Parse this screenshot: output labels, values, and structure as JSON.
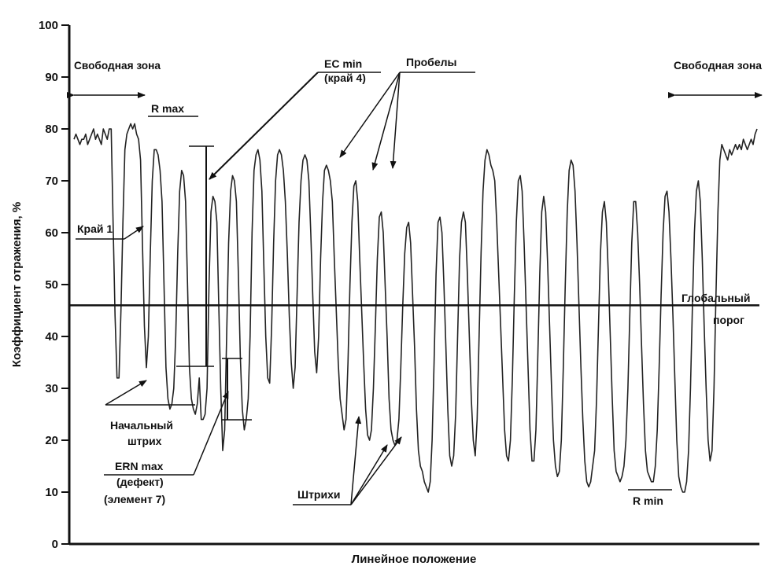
{
  "chart_data": {
    "type": "line",
    "title": "",
    "xlabel": "Линейное положение",
    "ylabel": "Коэффициент отражения, %",
    "ylim": [
      0,
      100
    ],
    "yticks": [
      0,
      10,
      20,
      30,
      40,
      50,
      60,
      70,
      80,
      90,
      100
    ],
    "grid": false,
    "legend": "none",
    "global_threshold": 46,
    "series": [
      {
        "values": [
          78,
          79,
          78,
          77,
          78,
          78,
          79,
          77,
          78,
          79,
          80,
          78,
          79,
          78,
          77,
          80,
          79,
          78,
          80,
          80,
          62,
          44,
          32,
          32,
          45,
          62,
          76,
          79,
          80,
          81,
          80,
          81,
          79,
          78,
          74,
          58,
          42,
          34,
          40,
          56,
          70,
          76,
          76,
          75,
          72,
          66,
          50,
          34,
          28,
          26,
          27,
          30,
          40,
          56,
          68,
          72,
          71,
          66,
          50,
          34,
          28,
          26,
          25,
          27,
          32,
          24,
          24,
          25,
          30,
          50,
          64,
          67,
          66,
          62,
          46,
          30,
          18,
          22,
          40,
          58,
          68,
          71,
          70,
          66,
          52,
          36,
          26,
          22,
          24,
          28,
          40,
          60,
          72,
          75,
          76,
          74,
          68,
          54,
          40,
          32,
          31,
          42,
          58,
          70,
          75,
          76,
          75,
          72,
          66,
          56,
          44,
          35,
          30,
          34,
          48,
          62,
          70,
          74,
          75,
          74,
          70,
          60,
          48,
          37,
          33,
          40,
          55,
          66,
          72,
          73,
          72,
          70,
          66,
          55,
          45,
          35,
          28,
          25,
          22,
          24,
          35,
          50,
          62,
          69,
          70,
          66,
          55,
          45,
          35,
          26,
          21,
          20,
          22,
          30,
          42,
          55,
          63,
          64,
          60,
          50,
          40,
          28,
          22,
          20,
          19,
          20,
          24,
          34,
          46,
          56,
          61,
          62,
          58,
          48,
          38,
          26,
          18,
          15,
          14,
          12,
          11,
          10,
          12,
          20,
          35,
          52,
          62,
          63,
          60,
          50,
          38,
          26,
          17,
          15,
          17,
          25,
          40,
          55,
          62,
          64,
          62,
          52,
          40,
          28,
          20,
          17,
          24,
          40,
          56,
          68,
          74,
          76,
          75,
          73,
          72,
          70,
          62,
          52,
          42,
          32,
          22,
          17,
          16,
          20,
          32,
          48,
          62,
          70,
          71,
          68,
          58,
          46,
          34,
          22,
          16,
          16,
          22,
          36,
          52,
          64,
          67,
          64,
          54,
          42,
          30,
          20,
          15,
          13,
          14,
          20,
          34,
          50,
          64,
          72,
          74,
          73,
          68,
          58,
          46,
          34,
          24,
          16,
          12,
          11,
          12,
          15,
          18,
          28,
          42,
          56,
          64,
          66,
          62,
          52,
          40,
          28,
          18,
          14,
          13,
          12,
          13,
          15,
          20,
          30,
          44,
          58,
          66,
          66,
          60,
          50,
          38,
          27,
          18,
          14,
          13,
          12,
          12,
          15,
          22,
          34,
          48,
          60,
          67,
          68,
          64,
          55,
          44,
          32,
          20,
          13,
          11,
          10,
          10,
          12,
          18,
          30,
          46,
          60,
          68,
          70,
          66,
          55,
          42,
          30,
          20,
          16,
          18,
          30,
          48,
          64,
          74,
          77,
          76,
          75,
          74,
          76,
          75,
          76,
          77,
          76,
          77,
          76,
          78,
          77,
          76,
          77,
          78,
          77,
          79,
          80
        ]
      }
    ],
    "annotations": {
      "free_zone_left": "Свободная зона",
      "r_max": "R max",
      "ec_min_1": "EC min",
      "ec_min_2": "(край 4)",
      "spaces": "Пробелы",
      "free_zone_right": "Свободная зона",
      "edge1": "Край 1",
      "global_1": "Глобальный",
      "global_2": "порог",
      "start_bar_1": "Начальный",
      "start_bar_2": "штрих",
      "ern_1": "ERN max",
      "ern_2": "(дефект)",
      "ern_3": "(элемент 7)",
      "bars": "Штрихи",
      "r_min": "R min"
    }
  }
}
